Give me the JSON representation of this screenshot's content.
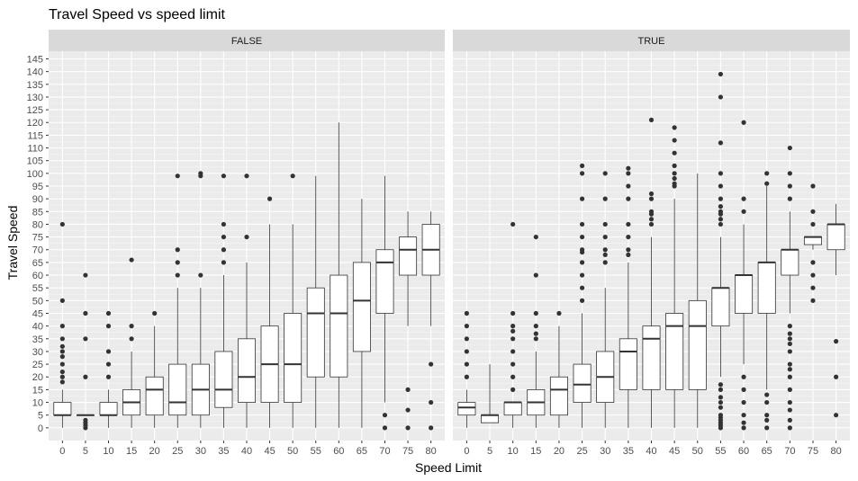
{
  "chart_data": {
    "type": "box",
    "title": "Travel Speed vs speed limit",
    "xlabel": "Speed Limit",
    "ylabel": "Travel Speed",
    "ylim": [
      -5,
      148
    ],
    "yticks": [
      0,
      5,
      10,
      15,
      20,
      25,
      30,
      35,
      40,
      45,
      50,
      55,
      60,
      65,
      70,
      75,
      80,
      85,
      90,
      95,
      100,
      105,
      110,
      115,
      120,
      125,
      130,
      135,
      140,
      145
    ],
    "categories": [
      "0",
      "5",
      "10",
      "15",
      "20",
      "25",
      "30",
      "35",
      "40",
      "45",
      "50",
      "55",
      "60",
      "65",
      "70",
      "75",
      "80"
    ],
    "grid": true,
    "facets": [
      {
        "label": "FALSE",
        "boxes": [
          {
            "x": "0",
            "lower": 0,
            "q1": 5,
            "median": 5,
            "q3": 10,
            "upper": 15,
            "outliers": [
              18,
              20,
              22,
              25,
              28,
              30,
              32,
              35,
              40,
              50,
              80
            ]
          },
          {
            "x": "5",
            "lower": 5,
            "q1": 5,
            "median": 5,
            "q3": 5,
            "upper": 5,
            "outliers": [
              0,
              1,
              2,
              3,
              20,
              35,
              45,
              60
            ]
          },
          {
            "x": "10",
            "lower": 0,
            "q1": 5,
            "median": 5,
            "q3": 10,
            "upper": 15,
            "outliers": [
              20,
              25,
              30,
              40,
              45
            ]
          },
          {
            "x": "15",
            "lower": 0,
            "q1": 5,
            "median": 10,
            "q3": 15,
            "upper": 30,
            "outliers": [
              35,
              40,
              66
            ]
          },
          {
            "x": "20",
            "lower": 0,
            "q1": 5,
            "median": 15,
            "q3": 20,
            "upper": 40,
            "outliers": [
              45
            ]
          },
          {
            "x": "25",
            "lower": 0,
            "q1": 5,
            "median": 10,
            "q3": 25,
            "upper": 55,
            "outliers": [
              60,
              65,
              70,
              99
            ]
          },
          {
            "x": "30",
            "lower": 0,
            "q1": 5,
            "median": 15,
            "q3": 25,
            "upper": 55,
            "outliers": [
              60,
              99,
              100
            ]
          },
          {
            "x": "35",
            "lower": 0,
            "q1": 8,
            "median": 15,
            "q3": 30,
            "upper": 60,
            "outliers": [
              65,
              70,
              75,
              80,
              99
            ]
          },
          {
            "x": "40",
            "lower": 0,
            "q1": 10,
            "median": 20,
            "q3": 35,
            "upper": 65,
            "outliers": [
              75,
              99
            ]
          },
          {
            "x": "45",
            "lower": 0,
            "q1": 10,
            "median": 25,
            "q3": 40,
            "upper": 80,
            "outliers": [
              90
            ]
          },
          {
            "x": "50",
            "lower": 0,
            "q1": 10,
            "median": 25,
            "q3": 45,
            "upper": 80,
            "outliers": [
              99
            ]
          },
          {
            "x": "55",
            "lower": 0,
            "q1": 20,
            "median": 45,
            "q3": 55,
            "upper": 99,
            "outliers": []
          },
          {
            "x": "60",
            "lower": 0,
            "q1": 20,
            "median": 45,
            "q3": 60,
            "upper": 120,
            "outliers": []
          },
          {
            "x": "65",
            "lower": 0,
            "q1": 30,
            "median": 50,
            "q3": 65,
            "upper": 90,
            "outliers": []
          },
          {
            "x": "70",
            "lower": 10,
            "q1": 45,
            "median": 65,
            "q3": 70,
            "upper": 99,
            "outliers": [
              0,
              5
            ]
          },
          {
            "x": "75",
            "lower": 40,
            "q1": 60,
            "median": 70,
            "q3": 75,
            "upper": 85,
            "outliers": [
              0,
              7,
              15
            ]
          },
          {
            "x": "80",
            "lower": 40,
            "q1": 60,
            "median": 70,
            "q3": 80,
            "upper": 85,
            "outliers": [
              0,
              10,
              25
            ]
          }
        ]
      },
      {
        "label": "TRUE",
        "boxes": [
          {
            "x": "0",
            "lower": 0,
            "q1": 5,
            "median": 8,
            "q3": 10,
            "upper": 15,
            "outliers": [
              20,
              25,
              30,
              35,
              40,
              45
            ]
          },
          {
            "x": "5",
            "lower": 2,
            "q1": 2,
            "median": 5,
            "q3": 5,
            "upper": 25,
            "outliers": []
          },
          {
            "x": "10",
            "lower": 0,
            "q1": 5,
            "median": 10,
            "q3": 10,
            "upper": 10,
            "outliers": [
              15,
              20,
              25,
              30,
              35,
              38,
              40,
              45,
              80
            ]
          },
          {
            "x": "15",
            "lower": 0,
            "q1": 5,
            "median": 10,
            "q3": 15,
            "upper": 30,
            "outliers": [
              35,
              37,
              40,
              45,
              60,
              75
            ]
          },
          {
            "x": "20",
            "lower": 0,
            "q1": 5,
            "median": 15,
            "q3": 20,
            "upper": 40,
            "outliers": [
              45
            ]
          },
          {
            "x": "25",
            "lower": 0,
            "q1": 10,
            "median": 17,
            "q3": 25,
            "upper": 45,
            "outliers": [
              50,
              55,
              60,
              65,
              69,
              70,
              75,
              80,
              90,
              100,
              103
            ]
          },
          {
            "x": "30",
            "lower": 0,
            "q1": 10,
            "median": 20,
            "q3": 30,
            "upper": 55,
            "outliers": [
              65,
              68,
              70,
              75,
              80,
              90,
              100
            ]
          },
          {
            "x": "35",
            "lower": 0,
            "q1": 15,
            "median": 30,
            "q3": 35,
            "upper": 65,
            "outliers": [
              68,
              70,
              75,
              80,
              90,
              95,
              100,
              102
            ]
          },
          {
            "x": "40",
            "lower": 0,
            "q1": 15,
            "median": 35,
            "q3": 40,
            "upper": 75,
            "outliers": [
              80,
              82,
              84,
              85,
              90,
              92,
              121
            ]
          },
          {
            "x": "45",
            "lower": 0,
            "q1": 15,
            "median": 40,
            "q3": 45,
            "upper": 90,
            "outliers": [
              95,
              96,
              98,
              100,
              103,
              108,
              113,
              118
            ]
          },
          {
            "x": "50",
            "lower": 0,
            "q1": 15,
            "median": 40,
            "q3": 50,
            "upper": 100,
            "outliers": []
          },
          {
            "x": "55",
            "lower": 20,
            "q1": 40,
            "median": 55,
            "q3": 55,
            "upper": 75,
            "outliers": [
              0,
              1,
              2,
              3,
              4,
              5,
              8,
              10,
              12,
              15,
              17,
              80,
              82,
              84,
              85,
              87,
              90,
              95,
              100,
              112,
              130,
              139
            ]
          },
          {
            "x": "60",
            "lower": 25,
            "q1": 45,
            "median": 60,
            "q3": 60,
            "upper": 80,
            "outliers": [
              0,
              2,
              5,
              10,
              15,
              20,
              85,
              90,
              120
            ]
          },
          {
            "x": "65",
            "lower": 15,
            "q1": 45,
            "median": 65,
            "q3": 65,
            "upper": 95,
            "outliers": [
              0,
              3,
              5,
              10,
              13,
              96,
              100
            ]
          },
          {
            "x": "70",
            "lower": 45,
            "q1": 60,
            "median": 70,
            "q3": 70,
            "upper": 85,
            "outliers": [
              0,
              3,
              7,
              10,
              15,
              20,
              23,
              25,
              30,
              33,
              35,
              37,
              40,
              90,
              95,
              100,
              110
            ]
          },
          {
            "x": "75",
            "lower": 70,
            "q1": 72,
            "median": 75,
            "q3": 75,
            "upper": 75,
            "outliers": [
              50,
              55,
              60,
              65,
              80,
              85,
              95
            ]
          },
          {
            "x": "80",
            "lower": 60,
            "q1": 70,
            "median": 80,
            "q3": 80,
            "upper": 88,
            "outliers": [
              5,
              20,
              34
            ]
          }
        ]
      }
    ]
  }
}
